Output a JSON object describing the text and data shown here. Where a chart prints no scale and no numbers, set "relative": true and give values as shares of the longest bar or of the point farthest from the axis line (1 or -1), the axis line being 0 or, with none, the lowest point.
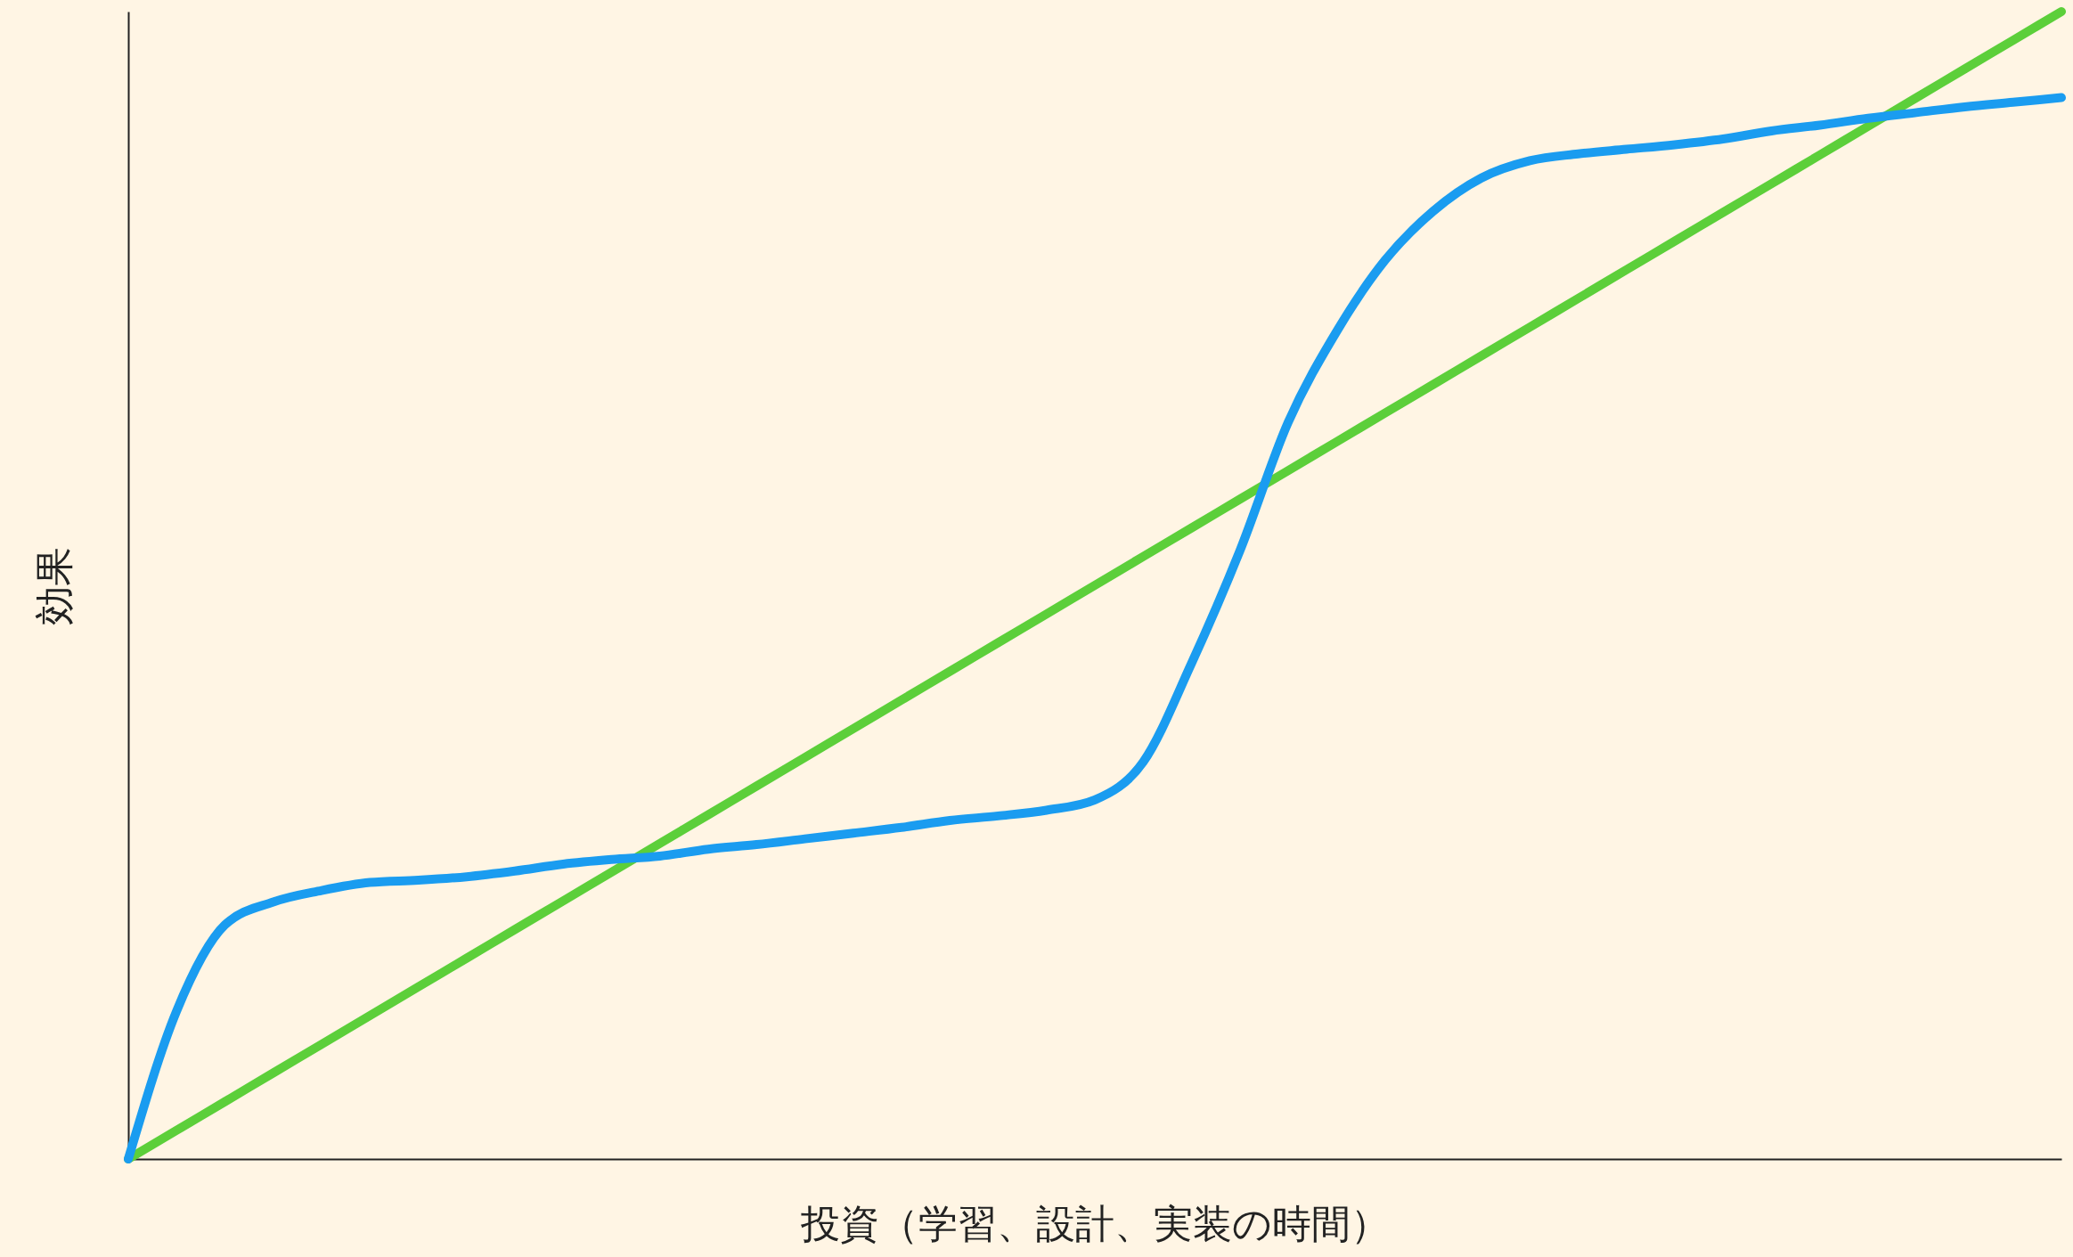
{
  "chart_data": {
    "type": "line",
    "relative": true,
    "xlabel": "投資（学習、設計、実装の時間）",
    "ylabel": "効果",
    "grid": false,
    "legend": false,
    "marker": "none",
    "line_style": "solid",
    "categories": [
      null,
      null,
      null,
      null,
      null,
      null,
      null,
      null,
      null,
      null,
      null,
      null,
      null,
      null,
      null,
      null,
      null,
      null,
      null,
      null,
      null,
      null,
      null,
      null,
      null,
      null,
      null,
      null,
      null,
      null,
      null,
      null,
      null,
      null,
      null,
      null,
      null,
      null,
      null,
      null,
      null
    ],
    "series": [
      {
        "color": "#5ccf3a",
        "values": [
          0,
          0.025,
          0.05,
          0.075,
          0.1,
          0.125,
          0.15,
          0.175,
          0.2,
          0.225,
          0.25,
          0.275,
          0.3,
          0.325,
          0.35,
          0.375,
          0.4,
          0.425,
          0.45,
          0.475,
          0.5,
          0.525,
          0.55,
          0.575,
          0.6,
          0.625,
          0.65,
          0.675,
          0.7,
          0.725,
          0.75,
          0.775,
          0.8,
          0.825,
          0.85,
          0.875,
          0.9,
          0.925,
          0.95,
          0.975,
          1
        ]
      },
      {
        "color": "#1a9cf0",
        "values": [
          0,
          0.129,
          0.204,
          0.224,
          0.234,
          0.241,
          0.243,
          0.246,
          0.251,
          0.257,
          0.261,
          0.264,
          0.27,
          0.274,
          0.279,
          0.284,
          0.289,
          0.295,
          0.299,
          0.304,
          0.313,
          0.346,
          0.432,
          0.53,
          0.642,
          0.721,
          0.783,
          0.826,
          0.855,
          0.87,
          0.876,
          0.88,
          0.884,
          0.889,
          0.896,
          0.901,
          0.907,
          0.912,
          0.917,
          0.921,
          0.925
        ]
      }
    ]
  }
}
